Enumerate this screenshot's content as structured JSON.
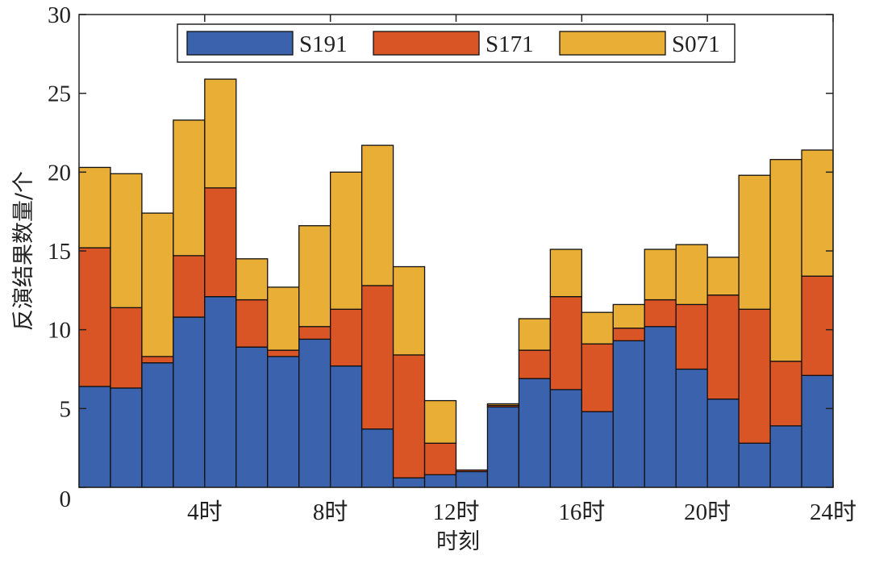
{
  "chart_data": {
    "type": "histogram",
    "x_label": "时刻",
    "y_label": "反演结果数量/个",
    "bins": [
      0,
      1,
      2,
      3,
      4,
      5,
      6,
      7,
      8,
      9,
      10,
      11,
      12,
      13,
      14,
      15,
      16,
      17,
      18,
      19,
      20,
      21,
      22,
      23,
      24
    ],
    "stacked": true,
    "legend": "upper center",
    "series": [
      {
        "name": "S191",
        "color": "#3a62ad",
        "values": [
          6.4,
          6.3,
          7.9,
          10.8,
          12.1,
          8.9,
          8.3,
          9.4,
          7.7,
          3.7,
          0.6,
          0.8,
          1.0,
          5.1,
          6.9,
          6.2,
          4.8,
          9.3,
          10.2,
          7.5,
          5.6,
          2.8,
          3.9,
          7.1
        ]
      },
      {
        "name": "S171",
        "color": "#d95525",
        "values": [
          8.8,
          5.1,
          0.4,
          3.9,
          6.9,
          3.0,
          0.4,
          0.8,
          3.6,
          9.1,
          7.8,
          2.0,
          0.1,
          0.1,
          1.8,
          5.9,
          4.3,
          0.8,
          1.7,
          4.1,
          6.6,
          8.5,
          4.1,
          6.3
        ]
      },
      {
        "name": "S071",
        "color": "#e8ae36",
        "values": [
          5.1,
          8.5,
          9.1,
          8.6,
          6.9,
          2.6,
          4.0,
          6.4,
          8.7,
          8.9,
          5.6,
          2.7,
          0.0,
          0.1,
          2.0,
          3.0,
          2.0,
          1.5,
          3.2,
          3.8,
          2.4,
          8.5,
          12.8,
          8.0
        ]
      }
    ],
    "xlim": [
      0,
      24
    ],
    "xticks": [
      {
        "value": 4,
        "label": "4时"
      },
      {
        "value": 8,
        "label": "8时"
      },
      {
        "value": 12,
        "label": "12时"
      },
      {
        "value": 16,
        "label": "16时"
      },
      {
        "value": 20,
        "label": "20时"
      },
      {
        "value": 24,
        "label": "24时"
      }
    ],
    "ylim": [
      0,
      30
    ],
    "yticks": [
      0,
      5,
      10,
      15,
      20,
      25,
      30
    ]
  }
}
